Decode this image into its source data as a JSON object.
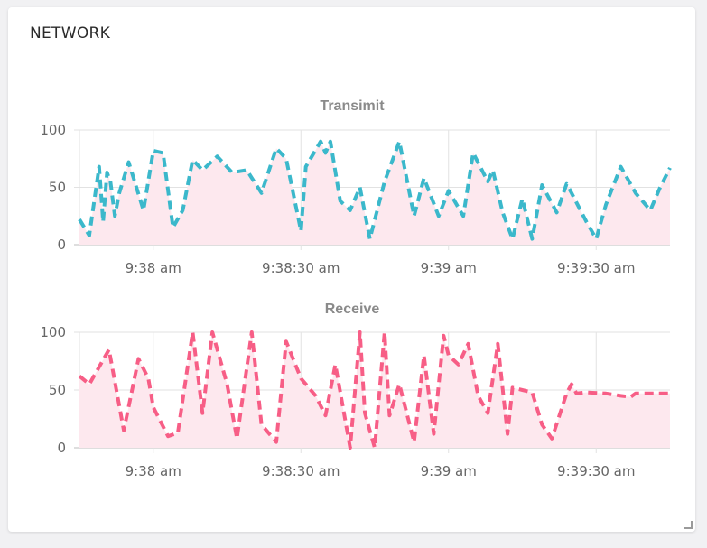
{
  "card": {
    "title": "NETWORK"
  },
  "chart_data": [
    {
      "type": "area",
      "title": "Transimit",
      "ylim": [
        0,
        100
      ],
      "yticks": [
        0,
        50,
        100
      ],
      "x_range": [
        "9:37:45 am",
        "9:39:45 am"
      ],
      "x_tick_labels": [
        "9:38 am",
        "9:38:30 am",
        "9:39 am",
        "9:39:30 am"
      ],
      "line_color": "#3bb8cb",
      "fill_color": "#fde8ee",
      "line_style": "dashed",
      "grid": true,
      "series": [
        {
          "x": [
            "9:37:45",
            "9:37:47",
            "9:37:49",
            "9:37:49.8",
            "9:37:50.6",
            "9:37:51.3",
            "9:37:52.2",
            "9:37:53.1",
            "9:37:55",
            "9:37:58",
            "9:38",
            "9:38:02",
            "9:38:04",
            "9:38:06",
            "9:38:08",
            "9:38:10",
            "9:38:13",
            "9:38:16",
            "9:38:19",
            "9:38:22",
            "9:38:25",
            "9:38:27",
            "9:38:30",
            "9:38:31",
            "9:38:34",
            "9:38:35",
            "9:38:36",
            "9:38:38",
            "9:38:40",
            "9:38:42",
            "9:38:44",
            "9:38:47",
            "9:38:50",
            "9:38:53",
            "9:38:55",
            "9:38:58",
            "9:39",
            "9:39:03",
            "9:39:05",
            "9:39:08",
            "9:39:09",
            "9:39:11",
            "9:39:13",
            "9:39:15",
            "9:39:17",
            "9:39:19",
            "9:39:22",
            "9:39:24",
            "9:39:25",
            "9:39:28",
            "9:39:30",
            "9:39:32",
            "9:39:35",
            "9:39:38",
            "9:39:41",
            "9:39:43",
            "9:39:45"
          ],
          "y": [
            22,
            8,
            68,
            20,
            63,
            55,
            25,
            45,
            72,
            30,
            82,
            80,
            15,
            30,
            74,
            65,
            77,
            63,
            65,
            45,
            84,
            75,
            12,
            68,
            90,
            80,
            90,
            38,
            30,
            50,
            5,
            55,
            90,
            25,
            58,
            25,
            47,
            25,
            80,
            55,
            65,
            28,
            5,
            40,
            5,
            52,
            28,
            53,
            45,
            20,
            5,
            35,
            68,
            45,
            30,
            50,
            67
          ]
        }
      ]
    },
    {
      "type": "area",
      "title": "Receive",
      "ylim": [
        0,
        100
      ],
      "yticks": [
        0,
        50,
        100
      ],
      "x_range": [
        "9:37:45 am",
        "9:39:45 am"
      ],
      "x_tick_labels": [
        "9:38 am",
        "9:38:30 am",
        "9:39 am",
        "9:39:30 am"
      ],
      "line_color": "#f75e86",
      "fill_color": "#fde8ee",
      "line_style": "dashed",
      "grid": true,
      "series": [
        {
          "x": [
            "9:37:45",
            "9:37:47",
            "9:37:51",
            "9:37:54",
            "9:37:57",
            "9:37:59",
            "9:38",
            "9:38:03",
            "9:38:05",
            "9:38:08",
            "9:38:10",
            "9:38:12",
            "9:38:15",
            "9:38:17",
            "9:38:20",
            "9:38:22",
            "9:38:25",
            "9:38:27",
            "9:38:30",
            "9:38:33",
            "9:38:35",
            "9:38:37",
            "9:38:40",
            "9:38:42",
            "9:38:43",
            "9:38:45",
            "9:38:47",
            "9:38:48",
            "9:38:50",
            "9:38:53",
            "9:38:55",
            "9:38:57",
            "9:38:59",
            "9:39",
            "9:39:02",
            "9:39:04",
            "9:39:06",
            "9:39:08",
            "9:39:10",
            "9:39:12",
            "9:39:13",
            "9:39:15",
            "9:39:17",
            "9:39:19",
            "9:39:21",
            "9:39:24",
            "9:39:25",
            "9:39:26",
            "9:39:28",
            "9:39:32",
            "9:39:35",
            "9:39:37",
            "9:39:38",
            "9:39:40",
            "9:39:43",
            "9:39:45"
          ],
          "y": [
            62,
            55,
            85,
            15,
            77,
            60,
            35,
            10,
            13,
            100,
            30,
            100,
            55,
            8,
            100,
            20,
            5,
            92,
            60,
            45,
            28,
            72,
            0,
            100,
            30,
            0,
            100,
            28,
            55,
            5,
            80,
            12,
            97,
            80,
            72,
            90,
            45,
            30,
            90,
            12,
            52,
            50,
            48,
            20,
            8,
            47,
            55,
            47,
            48,
            47,
            45,
            44,
            47,
            47,
            47,
            47
          ]
        }
      ]
    }
  ]
}
